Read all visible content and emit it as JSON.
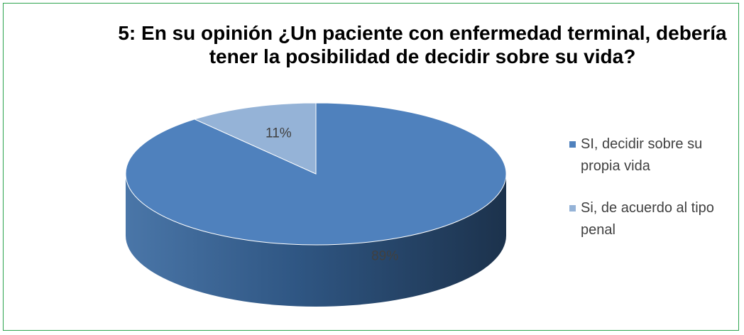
{
  "chart_data": {
    "type": "pie",
    "title": "5: En su opinión ¿Un paciente con enfermedad terminal, debería tener la posibilidad de decidir sobre su vida?",
    "categories": [
      "SI, decidir sobre su propia vida",
      "Si, de acuerdo al tipo penal"
    ],
    "values": [
      89,
      11
    ],
    "value_labels": [
      "89%",
      "11%"
    ],
    "colors": [
      "#4f81bd",
      "#95b3d7"
    ],
    "legend": "right"
  }
}
